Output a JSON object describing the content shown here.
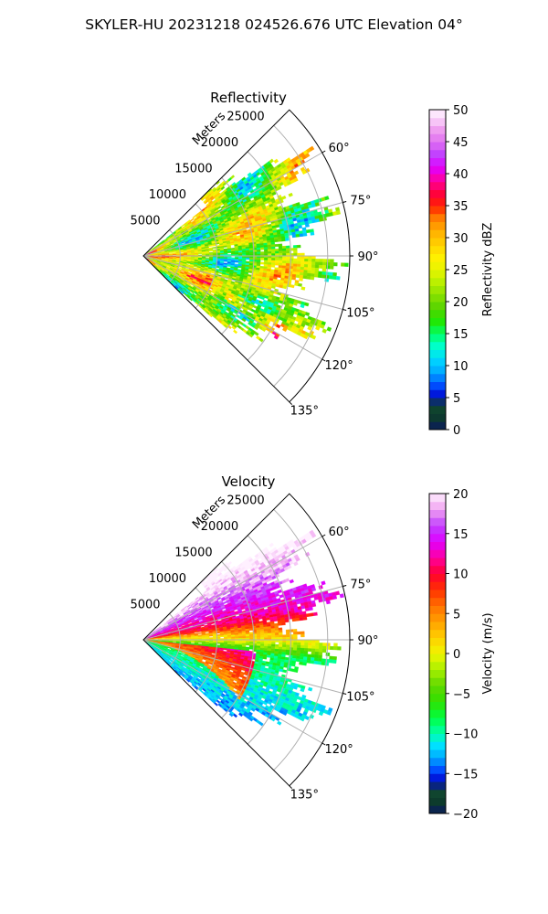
{
  "figure": {
    "suptitle": "SKYLER-HU  20231218  024526.676 UTC Elevation 04°"
  },
  "chart_data": [
    {
      "type": "heatmap",
      "title": "Reflectivity",
      "radial_axis_label": "Meters",
      "radial_ticks": [
        5000,
        10000,
        15000,
        20000,
        25000
      ],
      "radial_tick_labels": [
        "5000",
        "10000",
        "15000",
        "20000",
        "25000"
      ],
      "radial_max": 28000,
      "azimuth_range_deg": [
        45,
        135
      ],
      "azimuth_ticks": [
        60,
        75,
        90,
        105,
        120,
        135
      ],
      "azimuth_tick_labels": [
        "60°",
        "75°",
        "90°",
        "105°",
        "120°",
        "135°"
      ],
      "grid": true,
      "colorbar": {
        "label": "Reflectivity dBZ",
        "range": [
          0,
          50
        ],
        "ticks": [
          0,
          5,
          10,
          15,
          20,
          25,
          30,
          35,
          40,
          45,
          50
        ],
        "tick_labels": [
          "0",
          "5",
          "10",
          "15",
          "20",
          "25",
          "30",
          "35",
          "40",
          "45",
          "50"
        ],
        "stops": [
          {
            "v": 0,
            "c": "#0a1a5e"
          },
          {
            "v": 2,
            "c": "#0d3b2c"
          },
          {
            "v": 4,
            "c": "#114a30"
          },
          {
            "v": 5,
            "c": "#0000cc"
          },
          {
            "v": 7,
            "c": "#0050ff"
          },
          {
            "v": 9,
            "c": "#00a8ff"
          },
          {
            "v": 11,
            "c": "#00d8ff"
          },
          {
            "v": 13,
            "c": "#00ffd0"
          },
          {
            "v": 15,
            "c": "#00ff66"
          },
          {
            "v": 17,
            "c": "#22e600"
          },
          {
            "v": 19,
            "c": "#55d400"
          },
          {
            "v": 21,
            "c": "#88e000"
          },
          {
            "v": 23,
            "c": "#b8f000"
          },
          {
            "v": 25,
            "c": "#e8f500"
          },
          {
            "v": 27,
            "c": "#fff000"
          },
          {
            "v": 29,
            "c": "#ffd000"
          },
          {
            "v": 31,
            "c": "#ffb000"
          },
          {
            "v": 33,
            "c": "#ff8000"
          },
          {
            "v": 35,
            "c": "#ff2000"
          },
          {
            "v": 37,
            "c": "#ff0040"
          },
          {
            "v": 39,
            "c": "#ff00a0"
          },
          {
            "v": 41,
            "c": "#e000ff"
          },
          {
            "v": 43,
            "c": "#c040ff"
          },
          {
            "v": 45,
            "c": "#e070f0"
          },
          {
            "v": 47,
            "c": "#f0a0f0"
          },
          {
            "v": 49,
            "c": "#fce0fc"
          },
          {
            "v": 50,
            "c": "#fff0ff"
          }
        ]
      }
    },
    {
      "type": "heatmap",
      "title": "Velocity",
      "radial_axis_label": "Meters",
      "radial_ticks": [
        5000,
        10000,
        15000,
        20000,
        25000
      ],
      "radial_tick_labels": [
        "5000",
        "10000",
        "15000",
        "20000",
        "25000"
      ],
      "radial_max": 28000,
      "azimuth_range_deg": [
        45,
        135
      ],
      "azimuth_ticks": [
        60,
        75,
        90,
        105,
        120,
        135
      ],
      "azimuth_tick_labels": [
        "60°",
        "75°",
        "90°",
        "105°",
        "120°",
        "135°"
      ],
      "grid": true,
      "colorbar": {
        "label": "Velocity (m/s)",
        "range": [
          -20,
          20
        ],
        "ticks": [
          -20,
          -15,
          -10,
          -5,
          0,
          5,
          10,
          15,
          20
        ],
        "tick_labels": [
          "−20",
          "−15",
          "−10",
          "−5",
          "0",
          "5",
          "10",
          "15",
          "20"
        ],
        "stops": [
          {
            "v": -20,
            "c": "#0a1a5e"
          },
          {
            "v": -18.5,
            "c": "#0d3b2c"
          },
          {
            "v": -17,
            "c": "#114a30"
          },
          {
            "v": -16,
            "c": "#0000cc"
          },
          {
            "v": -14.5,
            "c": "#0050ff"
          },
          {
            "v": -13,
            "c": "#00a8ff"
          },
          {
            "v": -11.5,
            "c": "#00e0ff"
          },
          {
            "v": -10,
            "c": "#00ffb0"
          },
          {
            "v": -8,
            "c": "#00ff40"
          },
          {
            "v": -6,
            "c": "#30e000"
          },
          {
            "v": -4,
            "c": "#60d800"
          },
          {
            "v": -2,
            "c": "#a8f000"
          },
          {
            "v": 0,
            "c": "#f0f500"
          },
          {
            "v": 2,
            "c": "#ffd000"
          },
          {
            "v": 4,
            "c": "#ffa000"
          },
          {
            "v": 6,
            "c": "#ff7000"
          },
          {
            "v": 8,
            "c": "#ff3000"
          },
          {
            "v": 10,
            "c": "#ff0030"
          },
          {
            "v": 12,
            "c": "#ff00a0"
          },
          {
            "v": 14,
            "c": "#e000ff"
          },
          {
            "v": 16,
            "c": "#c040ff"
          },
          {
            "v": 18,
            "c": "#f0a0f0"
          },
          {
            "v": 20,
            "c": "#fff0ff"
          }
        ]
      }
    }
  ]
}
